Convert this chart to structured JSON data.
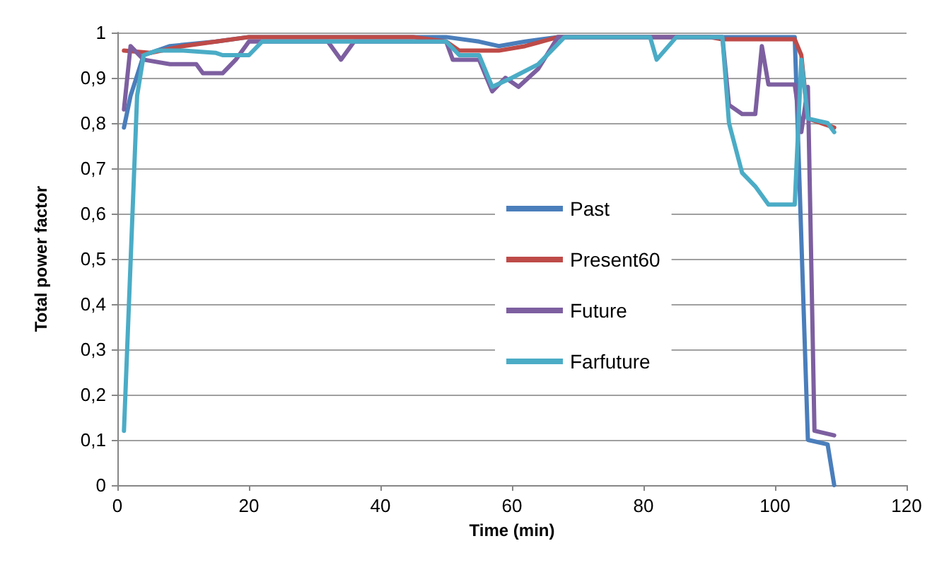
{
  "chart_data": {
    "type": "line",
    "xlabel": "Time (min)",
    "ylabel": "Total power factor",
    "xlim": [
      0,
      120
    ],
    "xticks": [
      0,
      20,
      40,
      60,
      80,
      100,
      120
    ],
    "ylim": [
      0,
      1
    ],
    "yticks": [
      0,
      {
        "value": 0.1,
        "label": "0,1"
      },
      {
        "value": 0.2,
        "label": "0,2"
      },
      {
        "value": 0.3,
        "label": "0,3"
      },
      {
        "value": 0.4,
        "label": "0,4"
      },
      {
        "value": 0.5,
        "label": "0,5"
      },
      {
        "value": 0.6,
        "label": "0,6"
      },
      {
        "value": 0.7,
        "label": "0,7"
      },
      {
        "value": 0.8,
        "label": "0,8"
      },
      {
        "value": 0.9,
        "label": "0,9"
      },
      1
    ],
    "grid": "y",
    "legend": "right",
    "marker": "none",
    "line_style": "solid",
    "series": [
      {
        "name": "Past",
        "color": "#4a7ebb",
        "x": [
          1,
          2,
          4,
          8,
          15,
          20,
          50,
          55,
          58,
          62,
          67,
          90,
          103,
          105,
          108,
          109
        ],
        "values": [
          0.79,
          0.86,
          0.95,
          0.97,
          0.98,
          0.99,
          0.99,
          0.98,
          0.97,
          0.98,
          0.99,
          0.99,
          0.99,
          0.1,
          0.09,
          0
        ]
      },
      {
        "name": "Present60",
        "color": "#be4b48",
        "x": [
          1,
          5,
          10,
          15,
          20,
          45,
          50,
          52,
          58,
          62,
          67,
          90,
          92,
          103,
          104,
          105,
          109
        ],
        "values": [
          0.96,
          0.955,
          0.97,
          0.98,
          0.99,
          0.99,
          0.98,
          0.96,
          0.96,
          0.97,
          0.99,
          0.99,
          0.985,
          0.985,
          0.95,
          0.81,
          0.79
        ]
      },
      {
        "name": "Future",
        "color": "#7d5fa0",
        "x": [
          1,
          2,
          4,
          8,
          12,
          13,
          16,
          18,
          20,
          32,
          34,
          36,
          50,
          51,
          55,
          57,
          59,
          61,
          64,
          67,
          92,
          93,
          95,
          97,
          98,
          99,
          103,
          104,
          105,
          106,
          109
        ],
        "values": [
          0.83,
          0.97,
          0.94,
          0.93,
          0.93,
          0.91,
          0.91,
          0.94,
          0.98,
          0.98,
          0.94,
          0.98,
          0.98,
          0.94,
          0.94,
          0.87,
          0.9,
          0.88,
          0.92,
          0.99,
          0.99,
          0.84,
          0.82,
          0.82,
          0.97,
          0.885,
          0.885,
          0.78,
          0.88,
          0.12,
          0.11
        ]
      },
      {
        "name": "Farfuture",
        "color": "#4bacc6",
        "x": [
          1,
          3,
          4,
          6,
          10,
          15,
          16,
          20,
          22,
          50,
          52,
          55,
          57,
          60,
          64,
          66,
          68,
          81,
          82,
          85,
          92,
          93,
          95,
          97,
          99,
          103,
          104,
          105,
          108,
          109
        ],
        "values": [
          0.12,
          0.86,
          0.95,
          0.96,
          0.96,
          0.955,
          0.95,
          0.95,
          0.98,
          0.98,
          0.95,
          0.95,
          0.88,
          0.9,
          0.93,
          0.96,
          0.99,
          0.99,
          0.94,
          0.99,
          0.99,
          0.8,
          0.69,
          0.66,
          0.62,
          0.62,
          0.94,
          0.81,
          0.8,
          0.78
        ]
      }
    ]
  }
}
